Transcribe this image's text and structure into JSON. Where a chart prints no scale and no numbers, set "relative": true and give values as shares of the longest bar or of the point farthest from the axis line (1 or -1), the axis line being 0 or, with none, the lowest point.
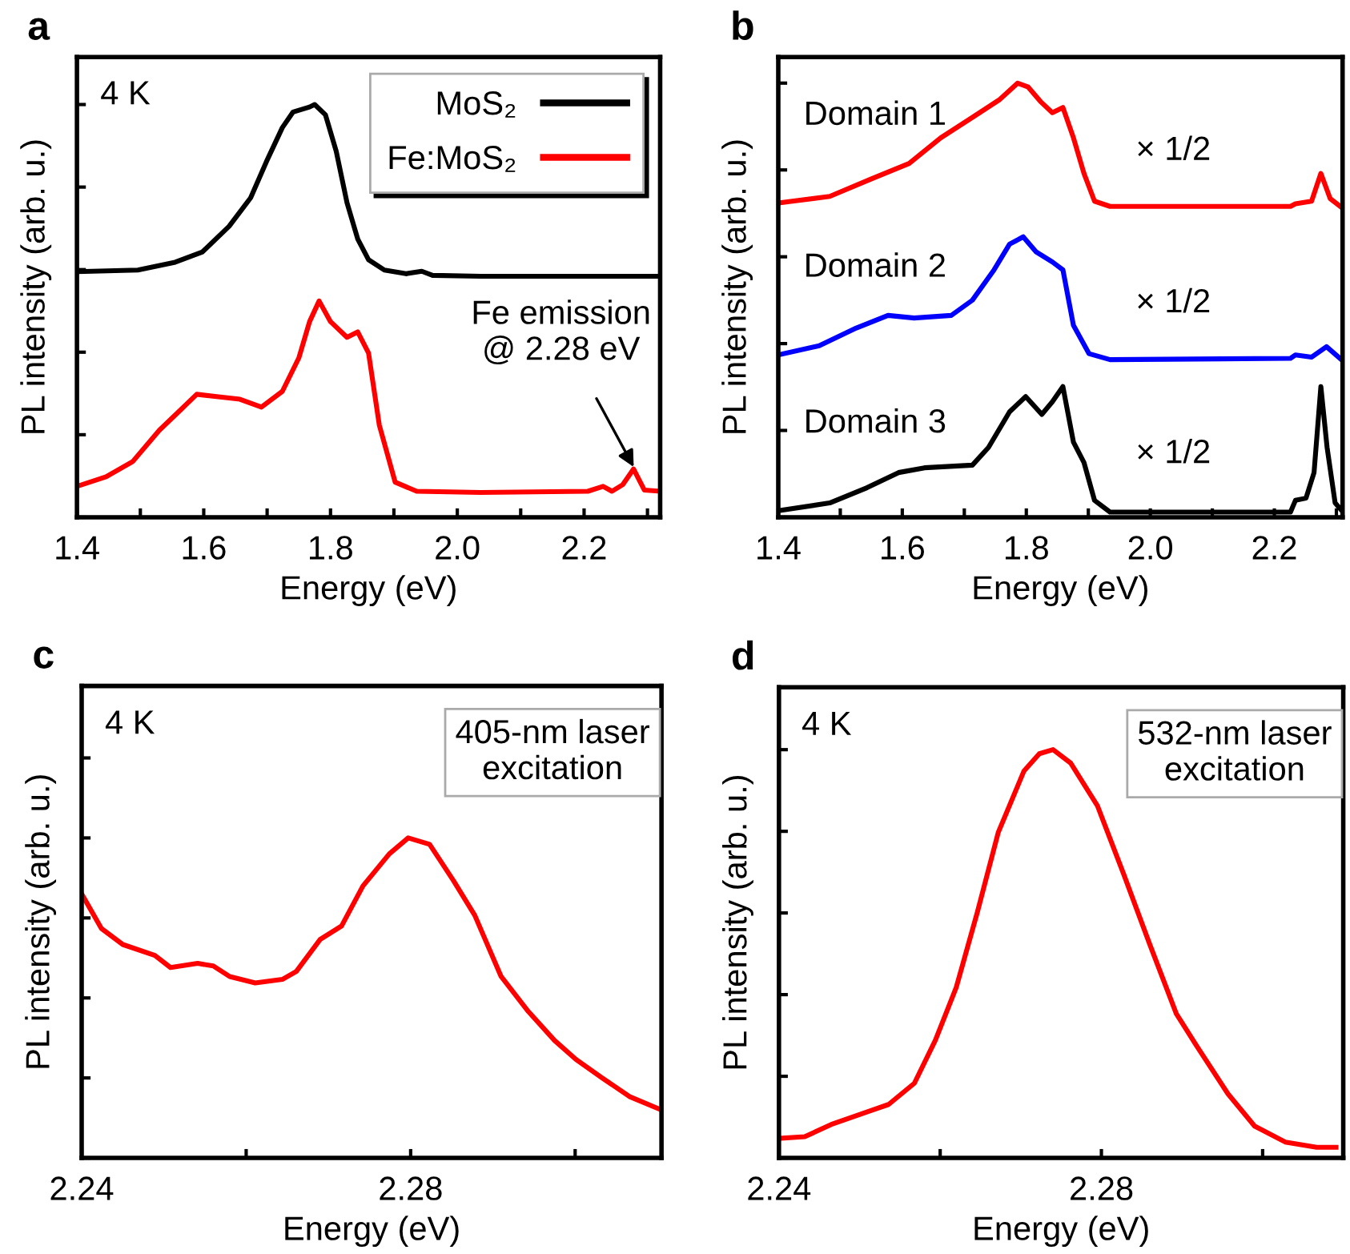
{
  "chart_data": [
    {
      "type": "line",
      "title": "a",
      "xlabel": "Energy (eV)",
      "ylabel": "PL intensity (arb. u.)",
      "relative": true,
      "legend": "top right",
      "tick_labels": "x",
      "grid": false,
      "line_style": "solid",
      "xlim": [
        1.4,
        2.32
      ],
      "xticks": [
        1.4,
        {
          "value": 1.5,
          "label": null
        },
        1.6,
        {
          "value": 1.7,
          "label": null
        },
        1.8,
        {
          "value": 1.9,
          "label": null
        },
        {
          "value": 2.0,
          "label": "2.0"
        },
        {
          "value": 2.1,
          "label": null
        },
        2.2,
        {
          "value": 2.3,
          "label": null
        }
      ],
      "annotations": [
        "4 K",
        {
          "text": "Fe emission\n@ 2.28 eV",
          "x": 2.28,
          "y": 0.117
        }
      ],
      "series": [
        {
          "name": "MoS₂",
          "color": "#000000",
          "x": [
            1.4,
            1.496,
            1.555,
            1.598,
            1.64,
            1.674,
            1.699,
            1.724,
            1.741,
            1.767,
            1.775,
            1.792,
            1.809,
            1.826,
            1.843,
            1.86,
            1.885,
            1.919,
            1.944,
            1.961,
            2.037,
            2.32
          ],
          "values": [
            0.595,
            0.599,
            0.618,
            0.643,
            0.705,
            0.774,
            0.862,
            0.944,
            0.982,
            0.994,
            1.0,
            0.975,
            0.887,
            0.762,
            0.674,
            0.624,
            0.599,
            0.59,
            0.596,
            0.586,
            0.584,
            0.584
          ]
        },
        {
          "name": "Fe:MoS₂",
          "color": "#ff0000",
          "x": [
            1.4,
            1.446,
            1.488,
            1.53,
            1.564,
            1.589,
            1.623,
            1.657,
            1.691,
            1.724,
            1.75,
            1.767,
            1.782,
            1.8,
            1.826,
            1.843,
            1.86,
            1.877,
            1.902,
            1.936,
            2.037,
            2.206,
            2.23,
            2.244,
            2.261,
            2.278,
            2.295,
            2.32
          ],
          "values": [
            0.075,
            0.098,
            0.135,
            0.211,
            0.261,
            0.298,
            0.292,
            0.286,
            0.267,
            0.305,
            0.386,
            0.474,
            0.524,
            0.474,
            0.436,
            0.449,
            0.398,
            0.223,
            0.085,
            0.063,
            0.06,
            0.063,
            0.075,
            0.063,
            0.079,
            0.117,
            0.066,
            0.063
          ]
        }
      ]
    },
    {
      "type": "line",
      "title": "b",
      "xlabel": "Energy (eV)",
      "ylabel": "PL intensity (arb. u.)",
      "relative": true,
      "tick_labels": "x",
      "grid": false,
      "line_style": "solid",
      "xlim": [
        1.4,
        2.31
      ],
      "xticks": [
        1.4,
        {
          "value": 1.5,
          "label": null
        },
        1.6,
        {
          "value": 1.7,
          "label": null
        },
        1.8,
        {
          "value": 1.9,
          "label": null
        },
        {
          "value": 2.0,
          "label": "2.0"
        },
        {
          "value": 2.1,
          "label": null
        },
        2.2,
        {
          "value": 2.3,
          "label": null
        }
      ],
      "annotations": [
        "Domain 1",
        "× 1/2",
        "Domain 2",
        "× 1/2",
        "Domain 3",
        "× 1/2"
      ],
      "series": [
        {
          "color": "#ff0000",
          "x": [
            1.4,
            1.483,
            1.551,
            1.611,
            1.662,
            1.713,
            1.756,
            1.786,
            1.803,
            1.824,
            1.842,
            1.859,
            1.876,
            1.893,
            1.91,
            1.935,
            2.226,
            2.234,
            2.26,
            2.275,
            2.29,
            2.309
          ],
          "values": [
            0.724,
            0.739,
            0.78,
            0.815,
            0.874,
            0.921,
            0.961,
            1.0,
            0.991,
            0.956,
            0.932,
            0.944,
            0.874,
            0.792,
            0.728,
            0.716,
            0.716,
            0.722,
            0.728,
            0.792,
            0.734,
            0.713
          ]
        },
        {
          "color": "#0000ff",
          "x": [
            1.4,
            1.466,
            1.526,
            1.577,
            1.619,
            1.679,
            1.713,
            1.748,
            1.773,
            1.795,
            1.816,
            1.842,
            1.859,
            1.876,
            1.901,
            1.935,
            2.226,
            2.234,
            2.26,
            2.284,
            2.309
          ],
          "values": [
            0.374,
            0.395,
            0.436,
            0.465,
            0.459,
            0.465,
            0.5,
            0.57,
            0.629,
            0.646,
            0.611,
            0.588,
            0.57,
            0.442,
            0.377,
            0.363,
            0.366,
            0.374,
            0.369,
            0.393,
            0.362
          ]
        },
        {
          "color": "#000000",
          "x": [
            1.4,
            1.483,
            1.543,
            1.594,
            1.636,
            1.713,
            1.739,
            1.773,
            1.799,
            1.825,
            1.842,
            1.859,
            1.876,
            1.893,
            1.91,
            1.935,
            2.226,
            2.234,
            2.251,
            2.264,
            2.275,
            2.285,
            2.298,
            2.309
          ],
          "values": [
            0.015,
            0.033,
            0.068,
            0.103,
            0.114,
            0.12,
            0.161,
            0.243,
            0.278,
            0.237,
            0.266,
            0.301,
            0.173,
            0.126,
            0.039,
            0.012,
            0.012,
            0.039,
            0.044,
            0.103,
            0.301,
            0.161,
            0.033,
            0.015
          ]
        }
      ]
    },
    {
      "type": "line",
      "title": "c",
      "xlabel": "Energy (eV)",
      "ylabel": "PL intensity (arb. u.)",
      "relative": true,
      "tick_labels": "x",
      "grid": false,
      "line_style": "solid",
      "xlim": [
        2.24,
        2.3105
      ],
      "xticks": [
        2.24,
        {
          "value": 2.26,
          "label": null
        },
        2.28,
        {
          "value": 2.3,
          "label": null
        }
      ],
      "annotations": [
        "4 K",
        "405-nm laser\nexcitation"
      ],
      "series": [
        {
          "color": "#ff0000",
          "x": [
            2.24,
            2.2424,
            2.245,
            2.2489,
            2.2508,
            2.2541,
            2.256,
            2.258,
            2.2611,
            2.2644,
            2.2661,
            2.269,
            2.2716,
            2.2742,
            2.2774,
            2.2797,
            2.2823,
            2.2852,
            2.2878,
            2.291,
            2.2943,
            2.2975,
            2.3001,
            2.3033,
            2.3066,
            2.3105
          ],
          "values": [
            0.825,
            0.717,
            0.667,
            0.633,
            0.595,
            0.608,
            0.6,
            0.567,
            0.547,
            0.558,
            0.583,
            0.683,
            0.725,
            0.85,
            0.95,
            1.0,
            0.98,
            0.867,
            0.758,
            0.567,
            0.458,
            0.367,
            0.308,
            0.25,
            0.192,
            0.15
          ]
        }
      ]
    },
    {
      "type": "line",
      "title": "d",
      "xlabel": "Energy (eV)",
      "ylabel": "PL intensity (arb. u.)",
      "relative": true,
      "tick_labels": "x",
      "grid": false,
      "line_style": "solid",
      "xlim": [
        2.24,
        2.31
      ],
      "xticks": [
        2.24,
        {
          "value": 2.26,
          "label": null
        },
        2.28,
        {
          "value": 2.3,
          "label": null
        }
      ],
      "annotations": [
        "4 K",
        "532-nm laser\nexcitation"
      ],
      "series": [
        {
          "color": "#ff0000",
          "x": [
            2.24,
            2.2432,
            2.2465,
            2.2517,
            2.2536,
            2.2568,
            2.2594,
            2.262,
            2.2646,
            2.2672,
            2.2704,
            2.2723,
            2.274,
            2.2762,
            2.2795,
            2.2828,
            2.286,
            2.2893,
            2.2918,
            2.2957,
            2.299,
            2.3028,
            2.3067,
            2.3091
          ],
          "values": [
            0.048,
            0.052,
            0.082,
            0.118,
            0.131,
            0.183,
            0.288,
            0.418,
            0.601,
            0.797,
            0.948,
            0.99,
            1.0,
            0.967,
            0.863,
            0.693,
            0.523,
            0.353,
            0.275,
            0.157,
            0.078,
            0.039,
            0.026,
            0.026
          ]
        }
      ]
    }
  ]
}
